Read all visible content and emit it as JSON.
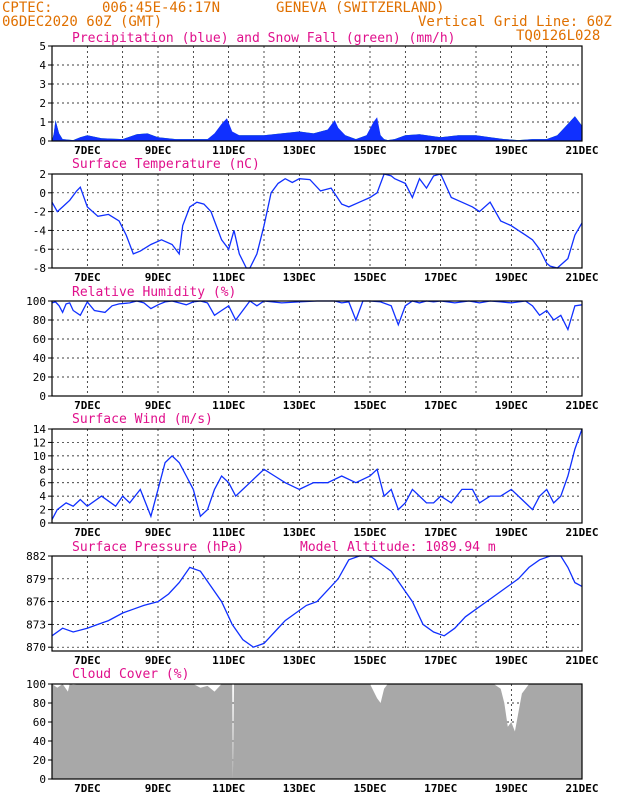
{
  "header": {
    "source": "CPTEC:",
    "coords": "006:45E-46:17N",
    "location": "GENEVA (SWITZERLAND)",
    "run": "06DEC2020 60Z (GMT)",
    "grid_note": "Vertical Grid Line: 60Z",
    "code": "TQ0126L028"
  },
  "colors": {
    "header": "#e07000",
    "title": "#e0108c",
    "line": "#1030ff",
    "snow": "#22cc22",
    "precip": "#1030ff",
    "cloud": "#a8a8a8"
  },
  "x_axis": {
    "start": "06DEC 06Z",
    "end": "21DEC 06Z",
    "tick_labels": [
      "7DEC",
      "9DEC",
      "11DEC",
      "13DEC",
      "15DEC",
      "17DEC",
      "19DEC",
      "21DEC"
    ]
  },
  "chart_data": [
    {
      "type": "area",
      "id": "precip",
      "title": "Precipitation (blue) and Snow Fall (green) (mm/h)",
      "ylim": [
        0,
        5
      ],
      "yticks": [
        "0",
        "1",
        "2",
        "3",
        "4",
        "5"
      ],
      "series": [
        {
          "name": "precipitation",
          "color": "#1030ff",
          "x": [
            0.0,
            0.05,
            0.1,
            0.2,
            0.3,
            0.6,
            0.8,
            1.0,
            1.4,
            2.0,
            2.4,
            2.7,
            3.0,
            3.5,
            4.0,
            4.4,
            4.6,
            4.8,
            4.95,
            5.1,
            5.3,
            6.0,
            7.0,
            7.4,
            7.8,
            8.0,
            8.1,
            8.3,
            8.6,
            8.9,
            9.1,
            9.2,
            9.3,
            9.4,
            9.5,
            9.7,
            10.0,
            10.4,
            11.0,
            11.5,
            12.0,
            12.4,
            12.8,
            13.2,
            13.6,
            14.0,
            14.3,
            14.6,
            14.8,
            15.0
          ],
          "values": [
            0,
            0.4,
            1.1,
            0.4,
            0.1,
            0.05,
            0.2,
            0.3,
            0.15,
            0.1,
            0.35,
            0.4,
            0.2,
            0.1,
            0.1,
            0.1,
            0.4,
            0.9,
            1.2,
            0.5,
            0.3,
            0.3,
            0.5,
            0.4,
            0.6,
            1.1,
            0.7,
            0.3,
            0.1,
            0.3,
            1.0,
            1.25,
            0.3,
            0.1,
            0.05,
            0.1,
            0.3,
            0.35,
            0.2,
            0.3,
            0.3,
            0.2,
            0.1,
            0.05,
            0.1,
            0.1,
            0.3,
            0.9,
            1.3,
            0.8
          ]
        },
        {
          "name": "snow fall",
          "color": "#22cc22",
          "x": [
            0.0,
            0.05,
            0.1,
            0.2,
            0.3,
            0.6,
            0.8,
            1.0,
            1.4,
            2.0,
            2.4,
            2.7,
            3.0,
            3.5,
            4.0,
            4.4,
            4.6,
            4.8,
            4.95,
            5.1,
            5.3,
            6.0,
            7.0,
            7.4,
            7.8,
            8.0,
            8.1,
            8.3,
            8.6,
            8.9,
            9.1,
            9.2,
            9.3,
            9.4,
            9.5,
            9.7,
            10.0,
            10.4,
            11.0,
            11.5,
            12.0,
            12.4,
            12.8,
            13.2,
            13.6,
            14.0,
            14.3,
            14.6,
            14.8,
            15.0
          ],
          "values": [
            0,
            0.4,
            1.1,
            0.4,
            0.1,
            0.05,
            0.2,
            0.3,
            0.15,
            0.1,
            0.35,
            0.4,
            0.2,
            0.1,
            0.1,
            0.1,
            0.3,
            0.4,
            0.4,
            0.3,
            0.3,
            0.3,
            0.5,
            0.4,
            0.6,
            0.8,
            0.6,
            0.3,
            0.1,
            0.3,
            0.4,
            0.4,
            0.3,
            0.1,
            0.05,
            0.1,
            0.3,
            0.35,
            0.2,
            0.3,
            0.3,
            0.2,
            0.1,
            0.05,
            0.1,
            0.1,
            0.3,
            0.9,
            1.3,
            0.8
          ]
        }
      ]
    },
    {
      "type": "line",
      "id": "temp",
      "title": "Surface Temperature (nC)",
      "ylim": [
        -8,
        2
      ],
      "yticks": [
        "-8",
        "-6",
        "-4",
        "-2",
        "0",
        "2"
      ],
      "x": [
        0,
        0.15,
        0.3,
        0.5,
        0.7,
        0.8,
        1.0,
        1.3,
        1.6,
        1.9,
        2.1,
        2.3,
        2.5,
        2.8,
        3.1,
        3.4,
        3.6,
        3.7,
        3.9,
        4.1,
        4.3,
        4.5,
        4.6,
        4.8,
        5.0,
        5.15,
        5.3,
        5.5,
        5.6,
        5.8,
        6.0,
        6.2,
        6.4,
        6.6,
        6.8,
        7.0,
        7.3,
        7.6,
        7.9,
        8.2,
        8.4,
        8.7,
        9.0,
        9.2,
        9.4,
        9.6,
        9.7,
        10.0,
        10.2,
        10.4,
        10.6,
        10.8,
        11.0,
        11.3,
        11.6,
        11.9,
        12.1,
        12.4,
        12.7,
        13.0,
        13.2,
        13.4,
        13.6,
        13.8,
        14.0,
        14.1,
        14.3,
        14.6,
        14.8,
        15.0
      ],
      "values": [
        -1,
        -2,
        -1.5,
        -0.8,
        0.2,
        0.6,
        -1.5,
        -2.5,
        -2.3,
        -3,
        -4.5,
        -6.5,
        -6.2,
        -5.5,
        -5,
        -5.5,
        -6.5,
        -3.5,
        -1.5,
        -1,
        -1.2,
        -2,
        -3,
        -5,
        -6,
        -4,
        -6.5,
        -8.5,
        -8,
        -6.5,
        -3.5,
        0,
        1,
        1.5,
        1.1,
        1.5,
        1.4,
        0.2,
        0.5,
        -1.2,
        -1.5,
        -1,
        -0.5,
        0,
        2,
        1.8,
        1.5,
        1,
        -0.5,
        1.5,
        0.5,
        1.8,
        2,
        -0.5,
        -1,
        -1.5,
        -2,
        -1,
        -3,
        -3.5,
        -4,
        -4.5,
        -5,
        -6,
        -7.5,
        -7.8,
        -8,
        -7,
        -4.5,
        -3.2
      ]
    },
    {
      "type": "line",
      "id": "rh",
      "title": "Relative Humidity (%)",
      "ylim": [
        0,
        100
      ],
      "yticks": [
        "0",
        "20",
        "40",
        "60",
        "80",
        "100"
      ],
      "x": [
        0,
        0.1,
        0.2,
        0.3,
        0.4,
        0.5,
        0.6,
        0.8,
        1.0,
        1.2,
        1.5,
        1.7,
        1.9,
        2.2,
        2.4,
        2.6,
        2.8,
        3.0,
        3.2,
        3.4,
        3.6,
        3.8,
        4.0,
        4.2,
        4.4,
        4.6,
        4.8,
        5.0,
        5.2,
        5.4,
        5.6,
        5.8,
        6.0,
        6.5,
        7.0,
        7.5,
        8.0,
        8.2,
        8.4,
        8.6,
        8.8,
        9.0,
        9.3,
        9.6,
        9.8,
        10.0,
        10.2,
        10.4,
        10.6,
        10.8,
        11.0,
        11.4,
        11.8,
        12.1,
        12.4,
        12.7,
        13.0,
        13.4,
        13.6,
        13.8,
        14.0,
        14.2,
        14.4,
        14.6,
        14.8,
        15.0
      ],
      "values": [
        98,
        99,
        95,
        88,
        97,
        98,
        90,
        85,
        99,
        90,
        88,
        95,
        97,
        98,
        100,
        98,
        92,
        96,
        99,
        100,
        98,
        96,
        99,
        100,
        98,
        85,
        90,
        95,
        80,
        90,
        100,
        95,
        100,
        98,
        99,
        100,
        100,
        98,
        99,
        80,
        100,
        100,
        99,
        95,
        75,
        95,
        100,
        98,
        100,
        99,
        100,
        98,
        100,
        98,
        100,
        99,
        98,
        100,
        95,
        85,
        90,
        80,
        85,
        70,
        95,
        96
      ]
    },
    {
      "type": "line",
      "id": "wind",
      "title": "Surface Wind (m/s)",
      "ylim": [
        0,
        14
      ],
      "yticks": [
        "0",
        "2",
        "4",
        "6",
        "8",
        "10",
        "12",
        "14"
      ],
      "x": [
        0,
        0.15,
        0.4,
        0.6,
        0.8,
        1.0,
        1.4,
        1.8,
        2.0,
        2.2,
        2.5,
        2.8,
        3.0,
        3.2,
        3.4,
        3.6,
        3.8,
        4.0,
        4.2,
        4.4,
        4.6,
        4.8,
        5.0,
        5.2,
        5.4,
        5.6,
        5.8,
        6.0,
        6.3,
        6.6,
        7.0,
        7.4,
        7.8,
        8.2,
        8.6,
        9.0,
        9.2,
        9.4,
        9.6,
        9.8,
        10.0,
        10.2,
        10.4,
        10.6,
        10.8,
        11.0,
        11.3,
        11.6,
        11.9,
        12.1,
        12.4,
        12.7,
        13.0,
        13.2,
        13.4,
        13.6,
        13.8,
        14.0,
        14.2,
        14.4,
        14.6,
        14.8,
        15.0
      ],
      "values": [
        0.5,
        2,
        3,
        2.5,
        3.5,
        2.5,
        4,
        2.5,
        4,
        3,
        5,
        1,
        5,
        9,
        10,
        9,
        7,
        5,
        1,
        2,
        5,
        7,
        6,
        4,
        5,
        6,
        7,
        8,
        7,
        6,
        5,
        6,
        6,
        7,
        6,
        7,
        8,
        4,
        5,
        2,
        3,
        5,
        4,
        3,
        3,
        4,
        3,
        5,
        5,
        3,
        4,
        4,
        5,
        4,
        3,
        2,
        4,
        5,
        3,
        4,
        7,
        11,
        14
      ]
    },
    {
      "type": "line",
      "id": "pressure",
      "title": "Surface Pressure (hPa)",
      "subtitle": "Model Altitude: 1089.94 m",
      "ylim": [
        869.5,
        882
      ],
      "yticks": [
        "870",
        "873",
        "876",
        "879",
        "882"
      ],
      "x": [
        0,
        0.3,
        0.6,
        1.0,
        1.3,
        1.6,
        2.0,
        2.3,
        2.6,
        3.0,
        3.3,
        3.6,
        3.9,
        4.2,
        4.5,
        4.8,
        5.1,
        5.4,
        5.7,
        6.0,
        6.3,
        6.6,
        6.9,
        7.2,
        7.5,
        7.8,
        8.1,
        8.4,
        8.7,
        9.0,
        9.3,
        9.6,
        9.9,
        10.2,
        10.5,
        10.8,
        11.1,
        11.4,
        11.7,
        12.0,
        12.3,
        12.6,
        12.9,
        13.2,
        13.5,
        13.8,
        14.1,
        14.4,
        14.6,
        14.8,
        15.0
      ],
      "values": [
        871.5,
        872.5,
        872,
        872.5,
        873,
        873.5,
        874.5,
        875,
        875.5,
        876,
        877,
        878.5,
        880.5,
        880,
        878,
        876,
        873,
        871,
        870,
        870.5,
        872,
        873.5,
        874.5,
        875.5,
        876,
        877.5,
        879,
        881.5,
        882,
        882,
        881,
        880,
        878,
        876,
        873,
        872,
        871.5,
        872.5,
        874,
        875,
        876,
        877,
        878,
        879,
        880.5,
        881.5,
        882,
        882,
        880.5,
        878.5,
        878
      ]
    },
    {
      "type": "area",
      "id": "cloud",
      "title": "Cloud Cover (%)",
      "ylim": [
        0,
        100
      ],
      "yticks": [
        "0",
        "20",
        "40",
        "60",
        "80",
        "100"
      ],
      "x": [
        0,
        0.15,
        0.3,
        0.45,
        0.5,
        0.6,
        0.8,
        1.0,
        1.5,
        2.0,
        2.5,
        3.0,
        3.5,
        3.8,
        4.0,
        4.2,
        4.4,
        4.6,
        4.8,
        5.0,
        5.1,
        5.12,
        5.15,
        6.0,
        7.0,
        8.0,
        9.0,
        9.2,
        9.3,
        9.4,
        9.5,
        10.0,
        11.0,
        12.0,
        12.5,
        12.7,
        12.8,
        12.9,
        13.0,
        13.1,
        13.2,
        13.3,
        13.4,
        13.5,
        14.0,
        14.5,
        15.0
      ],
      "values": [
        100,
        96,
        100,
        92,
        100,
        99,
        100,
        100,
        100,
        100,
        100,
        100,
        100,
        100,
        100,
        96,
        98,
        92,
        100,
        100,
        100,
        0,
        100,
        100,
        100,
        100,
        100,
        85,
        80,
        95,
        100,
        100,
        100,
        100,
        100,
        95,
        80,
        55,
        60,
        50,
        70,
        90,
        95,
        100,
        100,
        100,
        100
      ]
    }
  ]
}
